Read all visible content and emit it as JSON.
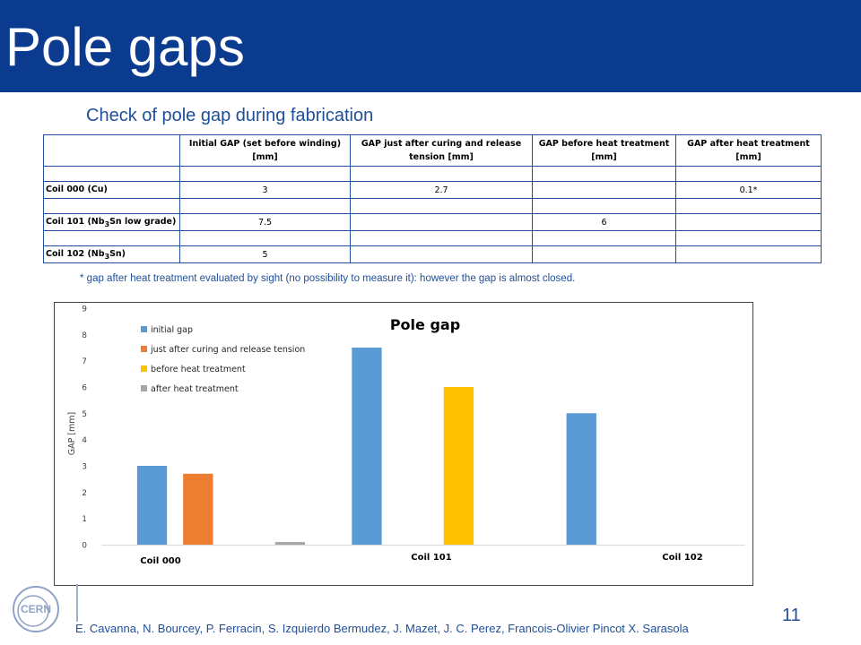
{
  "slide": {
    "title": "Pole gaps",
    "subtitle": "Check of pole gap during fabrication",
    "footnote": "* gap after heat treatment evaluated by sight (no possibility to measure it): however the gap is almost closed.",
    "authors": "E. Cavanna, N. Bourcey, P. Ferracin, S. Izquierdo Bermudez, J. Mazet, J. C. Perez, Francois-Olivier Pincot X. Sarasola",
    "page_number": "11",
    "logo_text": "CERN"
  },
  "table": {
    "headers": [
      "",
      "Initial GAP (set before winding) [mm]",
      "GAP just after curing and release tension [mm]",
      "GAP before heat treatment [mm]",
      "GAP after heat treatment [mm]"
    ],
    "rows": [
      {
        "label": "Coil 000 (Cu)",
        "label_main": "Coil 000 (Cu)",
        "label_sub": "",
        "label_tail": "",
        "cells": [
          "3",
          "2.7",
          "",
          "0.1*"
        ]
      },
      {
        "label": "Coil 101 (Nb3Sn low grade)",
        "label_main": "Coil 101 (Nb",
        "label_sub": "3",
        "label_tail": "Sn low grade)",
        "cells": [
          "7.5",
          "",
          "6",
          ""
        ]
      },
      {
        "label": "Coil 102 (Nb3Sn)",
        "label_main": "Coil 102 (Nb",
        "label_sub": "3",
        "label_tail": "Sn)",
        "cells": [
          "5",
          "",
          "",
          ""
        ]
      }
    ]
  },
  "colors": {
    "header_bg": "#0b3b8f",
    "accent_text": "#1f4e9a",
    "series": [
      "#5b9bd5",
      "#ed7d31",
      "#ffc000",
      "#a5a5a5"
    ]
  },
  "chart_data": {
    "type": "bar",
    "title": "Pole gap",
    "xlabel": "",
    "ylabel": "GAP [mm]",
    "ylim": [
      0,
      9
    ],
    "yticks": [
      "0",
      "1",
      "2",
      "3",
      "4",
      "5",
      "6",
      "7",
      "8",
      "9"
    ],
    "grid": false,
    "legend": "top-left",
    "categories": [
      "Coil 000",
      "Coil 101",
      "Coil 102"
    ],
    "series": [
      {
        "name": "initial gap",
        "values": [
          3,
          7.5,
          5
        ]
      },
      {
        "name": "just after curing and release tension",
        "values": [
          2.7,
          null,
          null
        ]
      },
      {
        "name": "before heat treatment",
        "values": [
          null,
          6,
          null
        ]
      },
      {
        "name": "after heat treatment",
        "values": [
          0.1,
          null,
          null
        ]
      }
    ]
  }
}
